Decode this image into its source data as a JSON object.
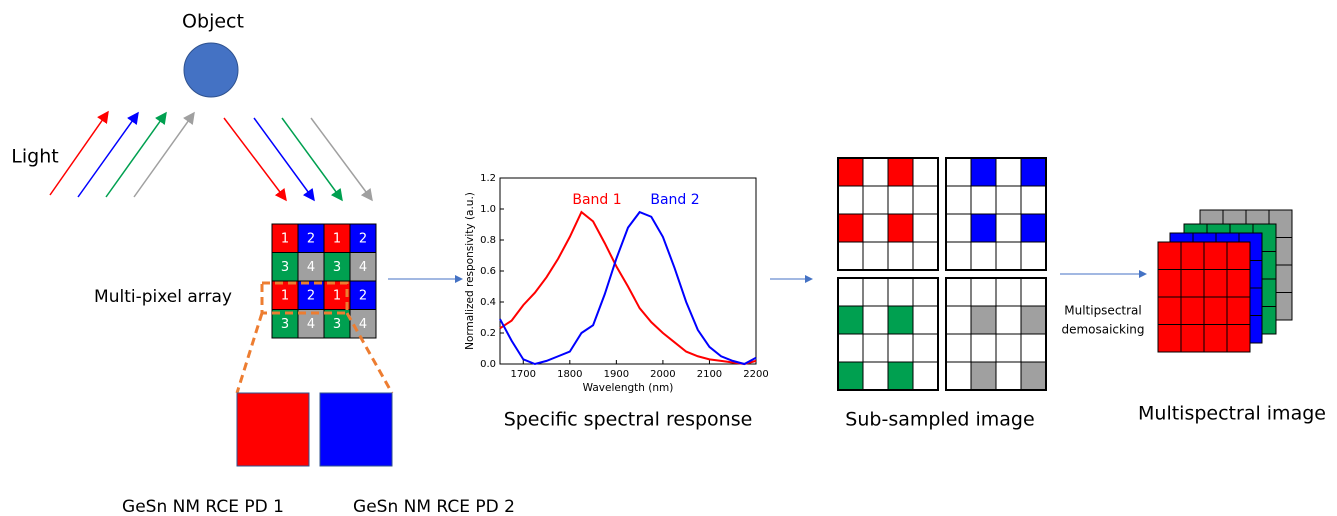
{
  "object_label": "Object",
  "light_label": "Light",
  "array_label": "Multi-pixel array",
  "pixel_array": {
    "rows": [
      [
        "1",
        "2",
        "1",
        "2"
      ],
      [
        "3",
        "4",
        "3",
        "4"
      ],
      [
        "1",
        "2",
        "1",
        "2"
      ],
      [
        "3",
        "4",
        "3",
        "4"
      ]
    ]
  },
  "detectors": [
    "GeSn NM RCE PD 1",
    "GeSn NM RCE PD 2"
  ],
  "spectrum": {
    "type": "line",
    "caption": "Specific spectral response",
    "x_label": "Wavelength (nm)",
    "y_label": "Normalized responsivity (a.u.)",
    "x": [
      1650,
      1675,
      1700,
      1725,
      1750,
      1775,
      1800,
      1825,
      1850,
      1875,
      1900,
      1925,
      1950,
      1975,
      2000,
      2025,
      2050,
      2075,
      2100,
      2125,
      2150,
      2175,
      2200
    ],
    "series": [
      {
        "name": "Band 1",
        "color": "#ff0000",
        "values": [
          0.23,
          0.28,
          0.38,
          0.46,
          0.56,
          0.68,
          0.82,
          0.98,
          0.92,
          0.78,
          0.63,
          0.5,
          0.36,
          0.27,
          0.2,
          0.14,
          0.08,
          0.05,
          0.03,
          0.02,
          0.01,
          0.0,
          0.02
        ]
      },
      {
        "name": "Band 2",
        "color": "#0000ff",
        "values": [
          0.29,
          0.15,
          0.03,
          0.0,
          0.02,
          0.05,
          0.08,
          0.2,
          0.25,
          0.45,
          0.68,
          0.88,
          0.98,
          0.95,
          0.82,
          0.62,
          0.4,
          0.22,
          0.11,
          0.05,
          0.02,
          0.0,
          0.04
        ]
      }
    ],
    "xlim": [
      1650,
      2200
    ],
    "ylim": [
      0,
      1.2
    ],
    "xticks": [
      1700,
      1800,
      1900,
      2000,
      2100,
      2200
    ],
    "yticks": [
      {
        "value": 0,
        "label": "0.0"
      },
      {
        "value": 0.2,
        "label": "0.2"
      },
      {
        "value": 0.4,
        "label": "0.4"
      },
      {
        "value": 0.6,
        "label": "0.6"
      },
      {
        "value": 0.8,
        "label": "0.8"
      },
      {
        "value": 1,
        "label": "1.0"
      },
      {
        "value": 1.2,
        "label": "1.2"
      }
    ]
  },
  "subsampled_label": "Sub-sampled image",
  "demosaic_label": [
    "Multipsectral",
    "demosaicking"
  ],
  "output_label": "Multispectral image"
}
